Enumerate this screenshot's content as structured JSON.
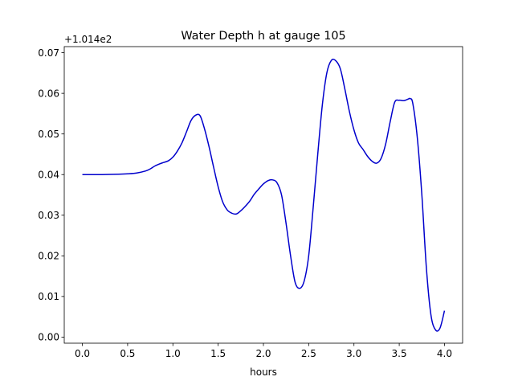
{
  "chart_data": {
    "type": "line",
    "title": "Water Depth h at gauge 105",
    "xlabel": "hours",
    "ylabel": "",
    "y_offset_label": "+1.014e2",
    "xlim": [
      -0.2,
      4.2
    ],
    "ylim": [
      -0.0015,
      0.0715
    ],
    "x_ticks": [
      0.0,
      0.5,
      1.0,
      1.5,
      2.0,
      2.5,
      3.0,
      3.5,
      4.0
    ],
    "x_tick_labels": [
      "0.0",
      "0.5",
      "1.0",
      "1.5",
      "2.0",
      "2.5",
      "3.0",
      "3.5",
      "4.0"
    ],
    "y_ticks": [
      0.0,
      0.01,
      0.02,
      0.03,
      0.04,
      0.05,
      0.06,
      0.07
    ],
    "y_tick_labels": [
      "0.00",
      "0.01",
      "0.02",
      "0.03",
      "0.04",
      "0.05",
      "0.06",
      "0.07"
    ],
    "grid": false,
    "legend": "none",
    "colors": {
      "line": "#0000cc",
      "axes": "#000000",
      "background": "#ffffff"
    },
    "series": [
      {
        "x": [
          0.0,
          0.2,
          0.4,
          0.5,
          0.6,
          0.7,
          0.75,
          0.8,
          0.85,
          0.9,
          0.95,
          1.0,
          1.05,
          1.1,
          1.15,
          1.2,
          1.25,
          1.3,
          1.35,
          1.4,
          1.45,
          1.5,
          1.55,
          1.6,
          1.65,
          1.7,
          1.75,
          1.8,
          1.85,
          1.9,
          1.95,
          2.0,
          2.05,
          2.1,
          2.15,
          2.2,
          2.25,
          2.3,
          2.35,
          2.4,
          2.45,
          2.5,
          2.55,
          2.6,
          2.65,
          2.7,
          2.75,
          2.8,
          2.85,
          2.9,
          2.95,
          3.0,
          3.05,
          3.1,
          3.15,
          3.2,
          3.25,
          3.3,
          3.35,
          3.4,
          3.45,
          3.5,
          3.55,
          3.6,
          3.62,
          3.65,
          3.7,
          3.75,
          3.8,
          3.85,
          3.9,
          3.95,
          4.0
        ],
        "y": [
          0.04,
          0.04,
          0.0401,
          0.0402,
          0.0404,
          0.0409,
          0.0414,
          0.0421,
          0.0426,
          0.043,
          0.0434,
          0.0443,
          0.0458,
          0.0478,
          0.0505,
          0.0533,
          0.0546,
          0.0545,
          0.0512,
          0.0468,
          0.0418,
          0.037,
          0.0333,
          0.0313,
          0.0305,
          0.0303,
          0.0311,
          0.0322,
          0.0335,
          0.0352,
          0.0365,
          0.0377,
          0.0385,
          0.0387,
          0.038,
          0.035,
          0.028,
          0.02,
          0.0135,
          0.012,
          0.0138,
          0.02,
          0.032,
          0.045,
          0.057,
          0.065,
          0.0681,
          0.068,
          0.066,
          0.061,
          0.0555,
          0.051,
          0.0478,
          0.0462,
          0.0445,
          0.0433,
          0.0428,
          0.044,
          0.0475,
          0.053,
          0.0578,
          0.0583,
          0.0582,
          0.0586,
          0.0587,
          0.0575,
          0.049,
          0.035,
          0.017,
          0.0055,
          0.0018,
          0.0022,
          0.0065
        ]
      }
    ]
  }
}
